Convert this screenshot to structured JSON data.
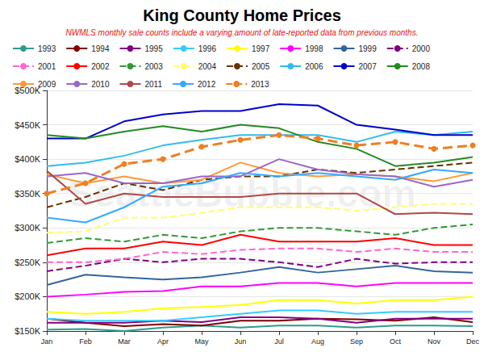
{
  "chart_data": {
    "type": "line",
    "title": "King County Home Prices",
    "subtitle": "NWMLS monthly sale counts include a varying amount of late-reported data from previous months.",
    "annotations": [
      "SeattleBubble.com"
    ],
    "categories": [
      "Jan",
      "Feb",
      "Mar",
      "Apr",
      "May",
      "Jun",
      "Jul",
      "Aug",
      "Sep",
      "Oct",
      "Nov",
      "Dec"
    ],
    "ylim": [
      150000,
      500000
    ],
    "yticks": [
      {
        "value": 150000,
        "label": "$150K"
      },
      {
        "value": 200000,
        "label": "$200K"
      },
      {
        "value": 250000,
        "label": "$250K"
      },
      {
        "value": 300000,
        "label": "$300K"
      },
      {
        "value": 350000,
        "label": "$350K"
      },
      {
        "value": 400000,
        "label": "$400K"
      },
      {
        "value": 450000,
        "label": "$450K"
      },
      {
        "value": 500000,
        "label": "$500K"
      }
    ],
    "grid": true,
    "legend": "top",
    "series": [
      {
        "name": "1993",
        "color": "#2e9c8c",
        "values": [
          152000,
          153000,
          150000,
          155000,
          158000,
          155000,
          158000,
          158000,
          155000,
          158000,
          158000,
          157000
        ]
      },
      {
        "name": "1994",
        "color": "#800000",
        "values": [
          168000,
          162000,
          157000,
          160000,
          158000,
          165000,
          165000,
          168000,
          167000,
          165000,
          170000,
          163000
        ]
      },
      {
        "name": "1995",
        "color": "#800080",
        "values": [
          162000,
          162000,
          162000,
          165000,
          163000,
          170000,
          170000,
          168000,
          162000,
          168000,
          168000,
          168000
        ]
      },
      {
        "name": "1996",
        "color": "#33ccff",
        "values": [
          168000,
          165000,
          165000,
          165000,
          170000,
          175000,
          180000,
          180000,
          175000,
          178000,
          178000,
          178000
        ]
      },
      {
        "name": "1997",
        "color": "#ffff00",
        "values": [
          178000,
          175000,
          178000,
          183000,
          185000,
          188000,
          195000,
          195000,
          190000,
          195000,
          195000,
          200000
        ]
      },
      {
        "name": "1998",
        "color": "#ff00ff",
        "values": [
          200000,
          203000,
          207000,
          208000,
          215000,
          215000,
          220000,
          220000,
          215000,
          220000,
          220000,
          220000
        ]
      },
      {
        "name": "1999",
        "color": "#336699",
        "values": [
          217000,
          232000,
          228000,
          225000,
          228000,
          235000,
          243000,
          235000,
          240000,
          245000,
          237000,
          235000
        ]
      },
      {
        "name": "2000",
        "color": "#800080",
        "line_style": "dashed",
        "values": [
          237000,
          245000,
          255000,
          250000,
          255000,
          255000,
          250000,
          243000,
          255000,
          248000,
          250000,
          250000
        ]
      },
      {
        "name": "2001",
        "color": "#ff66cc",
        "line_style": "dashed",
        "values": [
          250000,
          250000,
          255000,
          265000,
          262000,
          268000,
          270000,
          270000,
          265000,
          270000,
          265000,
          265000
        ]
      },
      {
        "name": "2002",
        "color": "#ff0000",
        "values": [
          260000,
          270000,
          270000,
          280000,
          275000,
          290000,
          280000,
          280000,
          280000,
          285000,
          275000,
          275000
        ]
      },
      {
        "name": "2003",
        "color": "#339933",
        "line_style": "dashed",
        "values": [
          278000,
          285000,
          280000,
          290000,
          285000,
          295000,
          300000,
          300000,
          295000,
          290000,
          300000,
          305000
        ]
      },
      {
        "name": "2004",
        "color": "#ffff66",
        "line_style": "dashed",
        "values": [
          293000,
          295000,
          315000,
          315000,
          322000,
          330000,
          330000,
          330000,
          325000,
          330000,
          335000,
          335000
        ]
      },
      {
        "name": "2005",
        "color": "#663300",
        "line_style": "dashed",
        "values": [
          330000,
          345000,
          365000,
          355000,
          370000,
          375000,
          375000,
          385000,
          380000,
          385000,
          390000,
          395000
        ]
      },
      {
        "name": "2006",
        "color": "#33bbee",
        "values": [
          390000,
          395000,
          405000,
          420000,
          428000,
          435000,
          435000,
          435000,
          425000,
          440000,
          435000,
          440000
        ]
      },
      {
        "name": "2007",
        "color": "#0000cc",
        "values": [
          430000,
          430000,
          455000,
          465000,
          470000,
          470000,
          480000,
          478000,
          450000,
          443000,
          435000,
          435000
        ]
      },
      {
        "name": "2008",
        "color": "#228b22",
        "values": [
          435000,
          430000,
          440000,
          448000,
          440000,
          450000,
          445000,
          425000,
          415000,
          390000,
          395000,
          403000
        ]
      },
      {
        "name": "2009",
        "color": "#ff9933",
        "values": [
          378000,
          365000,
          375000,
          365000,
          370000,
          395000,
          380000,
          375000,
          378000,
          375000,
          368000,
          380000
        ]
      },
      {
        "name": "2010",
        "color": "#9966cc",
        "values": [
          375000,
          380000,
          365000,
          365000,
          375000,
          375000,
          400000,
          385000,
          378000,
          375000,
          360000,
          370000
        ]
      },
      {
        "name": "2011",
        "color": "#b04848",
        "values": [
          383000,
          335000,
          350000,
          345000,
          345000,
          345000,
          350000,
          350000,
          350000,
          320000,
          322000,
          320000
        ]
      },
      {
        "name": "2012",
        "color": "#33aaff",
        "values": [
          315000,
          308000,
          330000,
          360000,
          365000,
          380000,
          375000,
          380000,
          375000,
          370000,
          385000,
          380000
        ]
      },
      {
        "name": "2013",
        "color": "#ee7f22",
        "line_style": "dashed",
        "marker": "circle",
        "values": [
          350000,
          365000,
          393000,
          400000,
          418000,
          428000,
          435000,
          430000,
          420000,
          425000,
          415000,
          420000
        ]
      }
    ]
  }
}
